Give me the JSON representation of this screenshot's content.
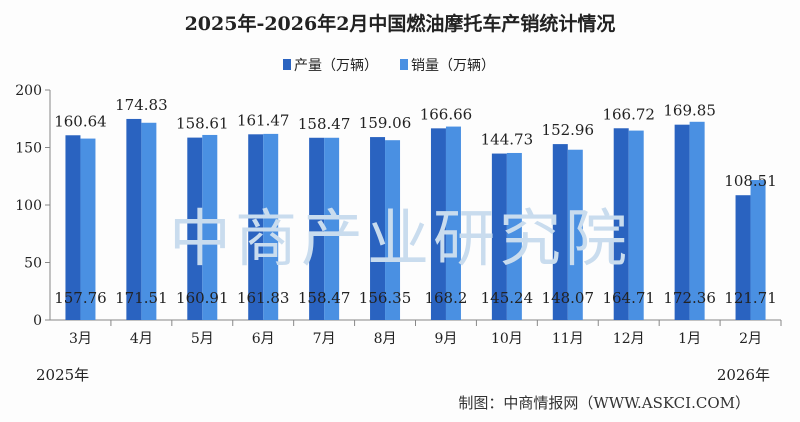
{
  "chart_data": {
    "type": "bar",
    "title": "2025年-2026年2月中国燃油摩托车产销统计情况",
    "categories": [
      "3月",
      "4月",
      "5月",
      "6月",
      "7月",
      "8月",
      "9月",
      "10月",
      "11月",
      "12月",
      "1月",
      "2月"
    ],
    "series": [
      {
        "name": "产量（万辆）",
        "color": "#2a63c0",
        "values": [
          160.64,
          174.83,
          158.61,
          161.47,
          158.47,
          159.06,
          166.66,
          144.73,
          152.96,
          166.72,
          169.85,
          108.51
        ]
      },
      {
        "name": "销量（万辆）",
        "color": "#4a90e2",
        "values": [
          157.76,
          171.51,
          160.91,
          161.83,
          158.47,
          156.35,
          168.2,
          145.24,
          148.07,
          164.71,
          172.36,
          121.71
        ]
      }
    ],
    "sales_labels": [
      "157.76",
      "171.51",
      "160.91",
      "161.83",
      "158.47",
      "156.35",
      "168.2",
      "145.24",
      "148.07",
      "164.71",
      "172.36",
      "121.71"
    ],
    "production_labels": [
      "160.64",
      "174.83",
      "158.61",
      "161.47",
      "158.47",
      "159.06",
      "166.66",
      "144.73",
      "152.96",
      "166.72",
      "169.85",
      "108.51"
    ],
    "yticks": [
      0,
      50,
      100,
      150,
      200
    ],
    "ylim": [
      0,
      200
    ],
    "year_labels": [
      "2025年",
      "2026年"
    ],
    "legend": "top",
    "grid": false
  },
  "source": "制图：中商情报网（WWW.ASKCI.COM）",
  "watermark": "中商产业研究院"
}
